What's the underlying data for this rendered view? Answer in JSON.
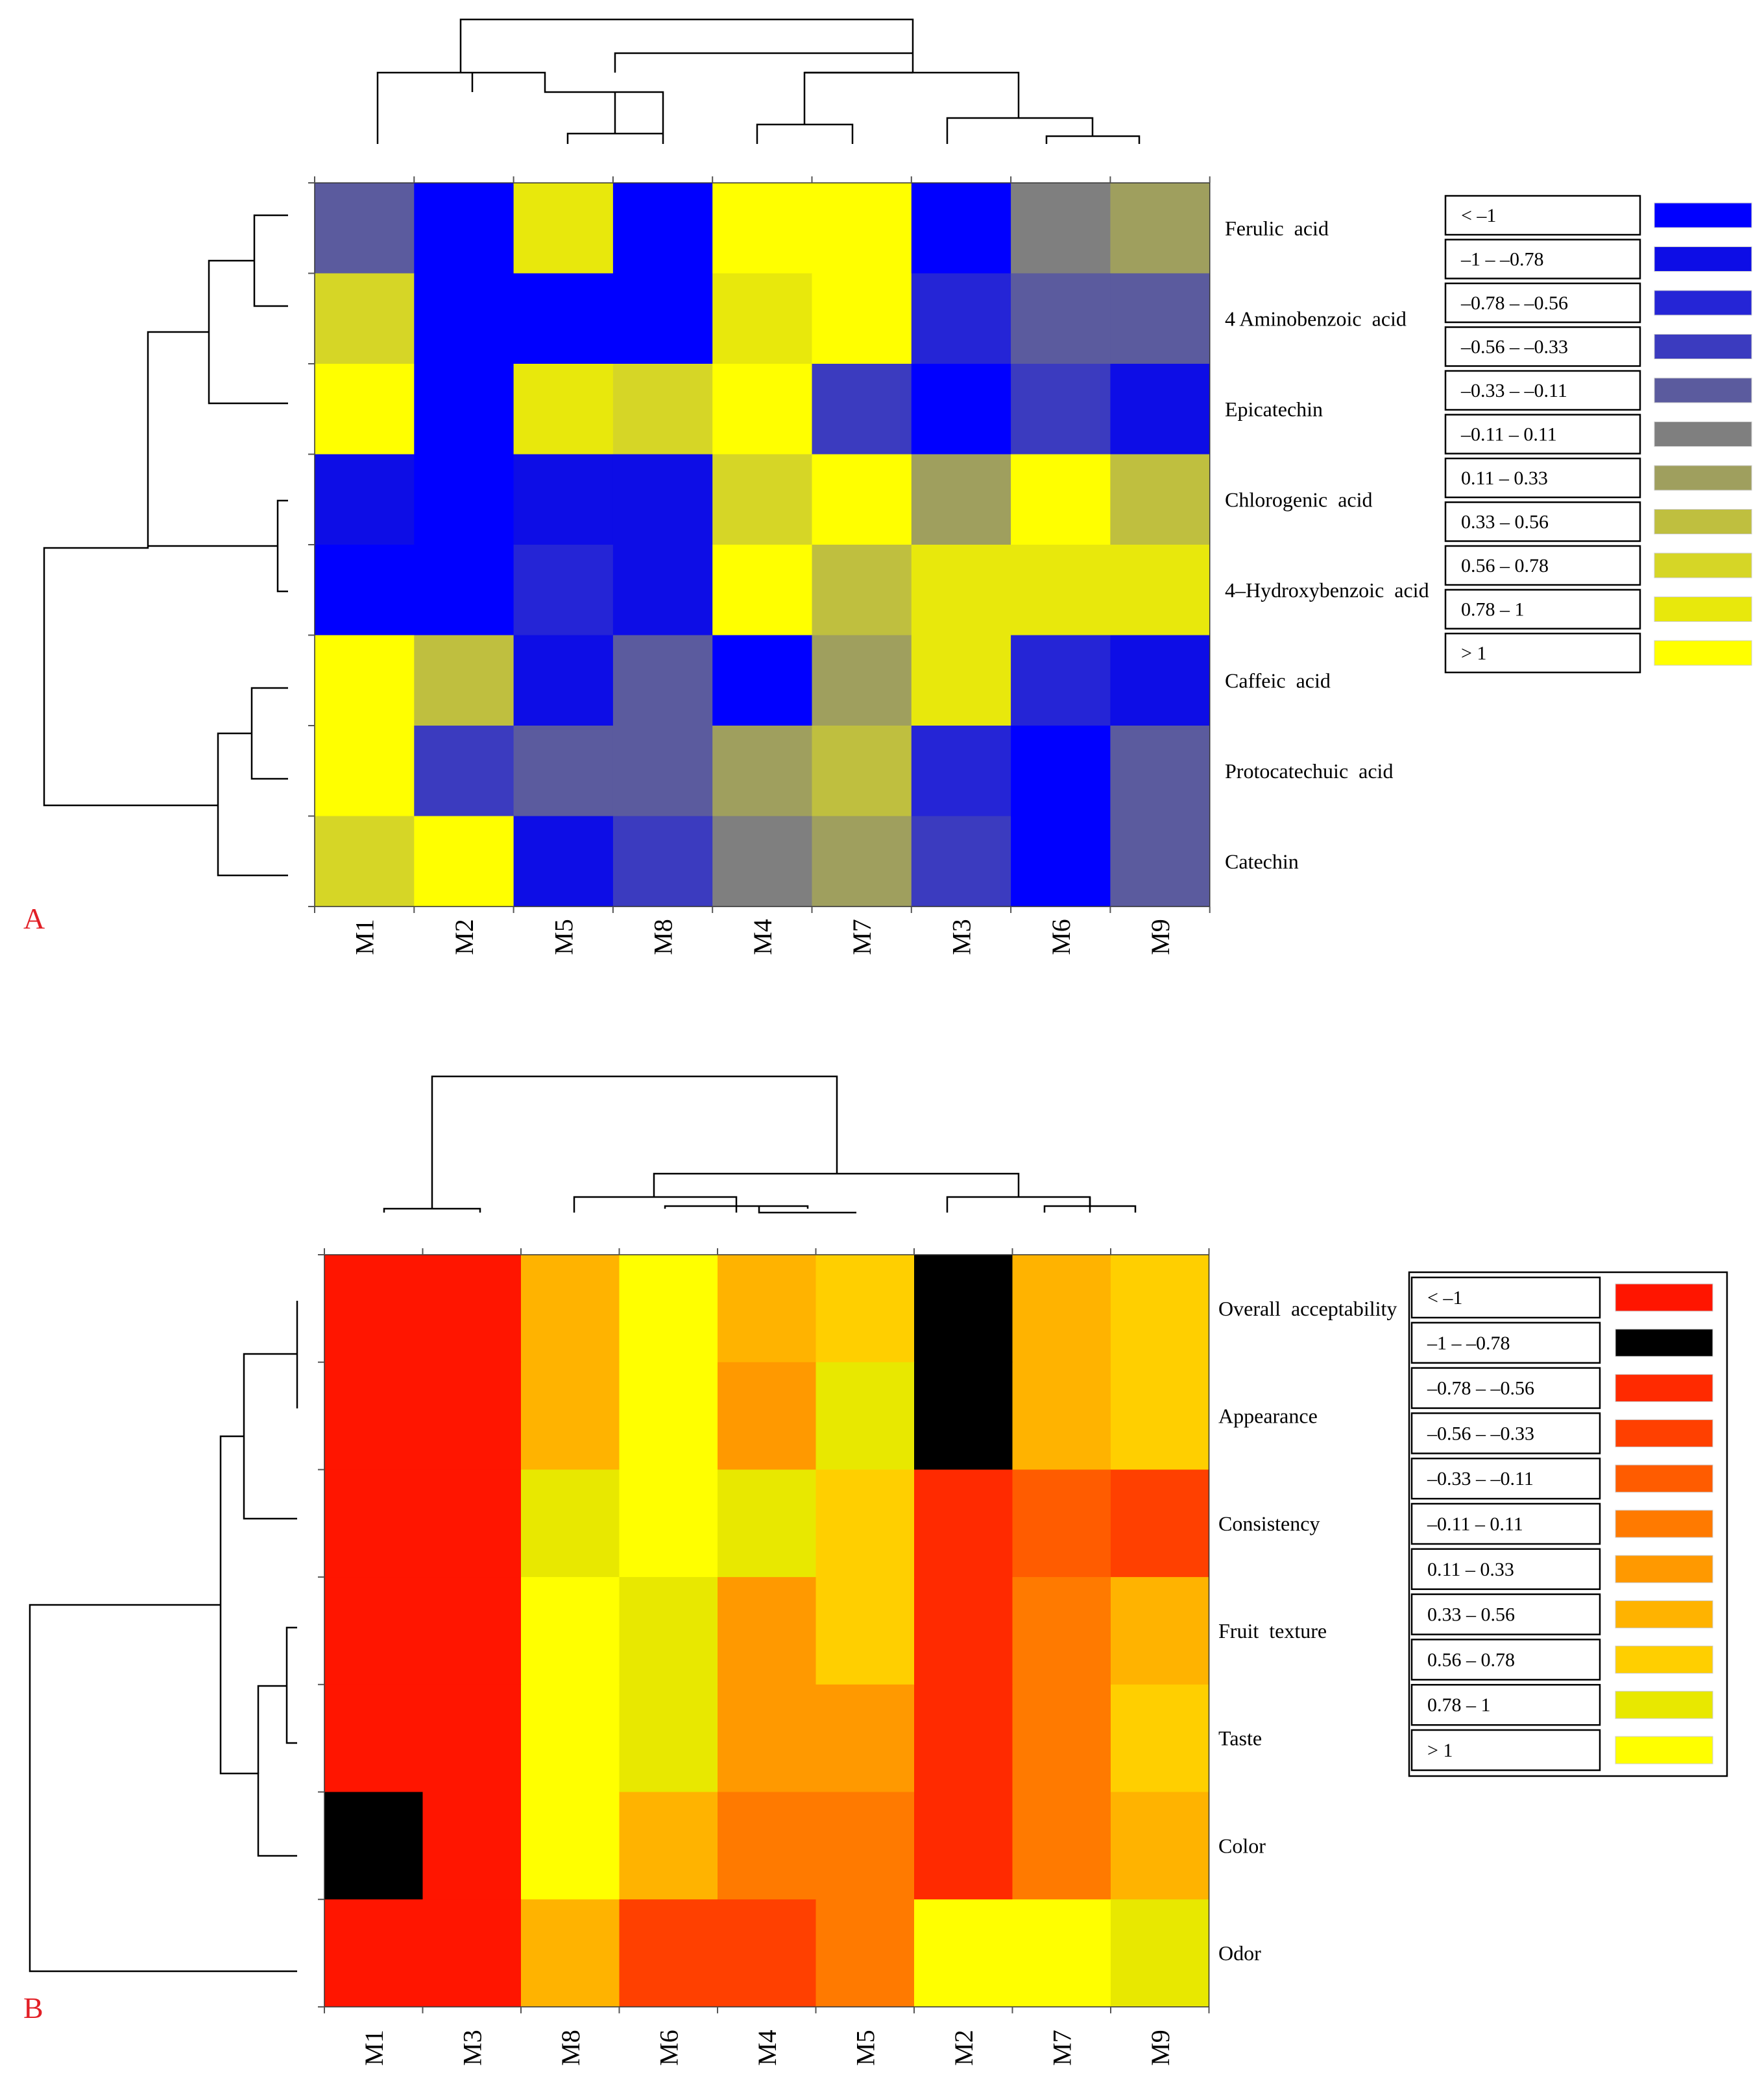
{
  "figure": {
    "panel_label_color": "#e21f26",
    "edge_color": "#333333"
  },
  "chart_data": [
    {
      "type": "heatmap",
      "panel_label": "A",
      "columns": [
        "M1",
        "M2",
        "M5",
        "M8",
        "M4",
        "M7",
        "M3",
        "M6",
        "M9"
      ],
      "rows": [
        "Ferulic  acid",
        "4 Aminobenzoic  acid",
        "Epicatechin",
        "Chlorogenic  acid",
        "4–Hydroxybenzoic  acid",
        "Caffeic  acid",
        "Protocatechuic  acid",
        "Catechin"
      ],
      "values": [
        [
          4,
          0,
          9,
          0,
          10,
          10,
          0,
          5,
          6
        ],
        [
          8,
          0,
          0,
          0,
          9,
          10,
          2,
          4,
          4
        ],
        [
          10,
          0,
          9,
          8,
          10,
          3,
          0,
          3,
          1
        ],
        [
          1,
          0,
          1,
          1,
          8,
          10,
          6,
          10,
          7
        ],
        [
          0,
          0,
          2,
          1,
          10,
          7,
          9,
          9,
          9
        ],
        [
          10,
          7,
          1,
          4,
          0,
          6,
          9,
          2,
          1
        ],
        [
          10,
          3,
          4,
          4,
          6,
          7,
          2,
          0,
          4
        ],
        [
          8,
          10,
          1,
          3,
          5,
          6,
          3,
          0,
          4
        ]
      ],
      "legend": {
        "bins": [
          "< –1",
          "–1 – –0.78",
          "–0.78 – –0.56",
          "–0.56 – –0.33",
          "–0.33 – –0.11",
          "–0.11 – 0.11",
          "0.11 – 0.33",
          "0.33 – 0.56",
          "0.56 – 0.78",
          "0.78 – 1",
          "> 1"
        ],
        "colors": [
          "#0000ff",
          "#0d0de6",
          "#2525d6",
          "#3b3bbf",
          "#5b5b9e",
          "#7f7f7f",
          "#9f9f5e",
          "#bfbf3f",
          "#d6d626",
          "#e8e80c",
          "#ffff00"
        ]
      }
    },
    {
      "type": "heatmap",
      "panel_label": "B",
      "columns": [
        "M1",
        "M3",
        "M8",
        "M6",
        "M4",
        "M5",
        "M2",
        "M7",
        "M9"
      ],
      "rows": [
        "Overall  acceptability",
        "Appearance",
        "Consistency",
        "Fruit  texture",
        "Taste",
        "Color",
        "Odor"
      ],
      "values": [
        [
          0,
          0,
          7,
          10,
          7,
          8,
          1,
          7,
          8
        ],
        [
          0,
          0,
          7,
          10,
          6,
          9,
          1,
          7,
          8
        ],
        [
          0,
          0,
          9,
          10,
          9,
          8,
          2,
          4,
          3
        ],
        [
          0,
          0,
          10,
          9,
          6,
          8,
          2,
          5,
          7
        ],
        [
          0,
          0,
          10,
          9,
          6,
          6,
          2,
          5,
          8
        ],
        [
          1,
          0,
          10,
          7,
          5,
          5,
          2,
          5,
          7
        ],
        [
          0,
          0,
          7,
          3,
          3,
          5,
          10,
          10,
          9
        ]
      ],
      "legend": {
        "bins": [
          "< –1",
          "–1 – –0.78",
          "–0.78 – –0.56",
          "–0.56 – –0.33",
          "–0.33 – –0.11",
          "–0.11 – 0.11",
          "0.11 – 0.33",
          "0.33 – 0.56",
          "0.56 – 0.78",
          "0.78 – 1",
          "> 1"
        ],
        "colors": [
          "#ff1500",
          "#000000",
          "#ff2a00",
          "#ff4000",
          "#ff5c00",
          "#ff7a00",
          "#ff9900",
          "#ffb300",
          "#ffcf00",
          "#e8e800",
          "#ffff00"
        ]
      }
    }
  ]
}
